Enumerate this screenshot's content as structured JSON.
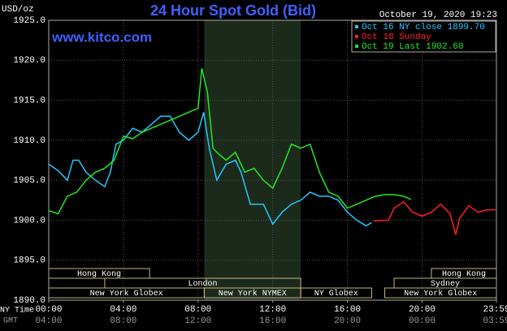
{
  "chart_data": {
    "type": "line",
    "title": "24 Hour Spot Gold (Bid)",
    "y_label": "USD/oz",
    "watermark": "www.kitco.com",
    "timestamp": "October 19, 2020 19:23",
    "x_label": "NY Time",
    "x2_label": "GMT",
    "xlim": [
      0,
      23.983
    ],
    "ylim": [
      1890,
      1925
    ],
    "yticks": [
      {
        "value": 1890,
        "label": "1890.0"
      },
      {
        "value": 1895,
        "label": "1895.0"
      },
      {
        "value": 1900,
        "label": "1900.0"
      },
      {
        "value": 1905,
        "label": "1905.0"
      },
      {
        "value": 1910,
        "label": "1910.0"
      },
      {
        "value": 1915,
        "label": "1915.0"
      },
      {
        "value": 1920,
        "label": "1920.0"
      },
      {
        "value": 1925,
        "label": "1925.0"
      }
    ],
    "xticks": [
      {
        "value": 0,
        "label": "00:00"
      },
      {
        "value": 4,
        "label": "04:00"
      },
      {
        "value": 8,
        "label": "08:00"
      },
      {
        "value": 12,
        "label": "12:00"
      },
      {
        "value": 16,
        "label": "16:00"
      },
      {
        "value": 20,
        "label": "20:00"
      },
      {
        "value": 23.983,
        "label": "23:59"
      }
    ],
    "x2ticks": [
      {
        "value": 0,
        "label": "04:00"
      },
      {
        "value": 4,
        "label": "08:00"
      },
      {
        "value": 8,
        "label": "12:00"
      },
      {
        "value": 12,
        "label": "16:00"
      },
      {
        "value": 16,
        "label": "20:00"
      },
      {
        "value": 20,
        "label": "00:00"
      },
      {
        "value": 23.983,
        "label": "03:59"
      }
    ],
    "grid": true,
    "shade": [
      8.33,
      13.5
    ],
    "sessions": [
      {
        "label": "Hong Kong",
        "start": 0,
        "end": 5.4,
        "row": 0
      },
      {
        "label": "Hong Kong",
        "start": 20.5,
        "end": 23.983,
        "row": 0
      },
      {
        "label": "London",
        "start": 3,
        "end": 13.5,
        "row": 1
      },
      {
        "label": "Sydney",
        "start": 18.5,
        "end": 23.983,
        "row": 1
      },
      {
        "label": "New York Globex",
        "start": 0,
        "end": 8.33,
        "row": 2
      },
      {
        "label": "New York NYMEX",
        "start": 8.33,
        "end": 13.5,
        "row": 2
      },
      {
        "label": "NY Globex",
        "start": 13.5,
        "end": 17.3,
        "row": 2
      },
      {
        "label": "New York Globex",
        "start": 18,
        "end": 23.983,
        "row": 2
      }
    ],
    "series": [
      {
        "name": "Oct 16 NY close 1899.70",
        "color": "#22c8ff",
        "x": [
          0,
          0.5,
          1,
          1.3,
          1.6,
          2,
          2.5,
          3,
          3.3,
          3.6,
          4,
          4.5,
          5,
          5.5,
          6,
          6.5,
          7,
          7.5,
          8,
          8.3,
          8.6,
          9,
          9.5,
          10,
          10.3,
          10.8,
          11.5,
          12,
          12.5,
          13,
          13.5,
          14,
          14.5,
          15,
          15.5,
          16,
          16.5,
          17,
          17.3
        ],
        "values": [
          1907,
          1906.2,
          1905,
          1907.5,
          1907.5,
          1906,
          1905,
          1904.2,
          1906,
          1909.5,
          1910,
          1911.5,
          1911,
          1912,
          1913,
          1913,
          1911,
          1910,
          1911,
          1913.5,
          1909,
          1905,
          1907,
          1907.5,
          1906,
          1902,
          1902,
          1899.5,
          1901,
          1902,
          1902.5,
          1903.5,
          1903,
          1903,
          1902.5,
          1901,
          1900,
          1899.3,
          1899.7
        ]
      },
      {
        "name": "Oct 18 Sunday",
        "color": "#ff2020",
        "x": [
          17.4,
          18.2,
          18.5,
          19,
          19.5,
          20,
          20.5,
          21,
          21.5,
          21.8,
          22,
          22.5,
          23,
          23.5,
          23.983
        ],
        "values": [
          1899.9,
          1900,
          1901.5,
          1902.3,
          1901,
          1900.5,
          1901,
          1902,
          1900.8,
          1898.2,
          1900.2,
          1901.8,
          1901,
          1901.3,
          1901.3
        ]
      },
      {
        "name": "Oct 19 Last 1902.60",
        "color": "#22e822",
        "x": [
          0,
          0.5,
          1,
          1.5,
          2,
          2.5,
          3,
          3.5,
          4,
          4.5,
          5,
          5.5,
          6,
          6.5,
          7,
          7.5,
          8,
          8.2,
          8.5,
          8.8,
          9,
          9.5,
          10,
          10.5,
          11,
          11.5,
          12,
          12.5,
          13,
          13.5,
          14,
          14.5,
          15,
          15.5,
          16,
          16.5,
          17,
          17.5,
          18,
          18.5,
          19,
          19.4
        ],
        "values": [
          1901.2,
          1900.8,
          1903,
          1903.5,
          1905,
          1906,
          1906.5,
          1907.5,
          1910.5,
          1910.2,
          1911,
          1911.5,
          1912,
          1912.5,
          1913,
          1913.5,
          1914,
          1919,
          1916,
          1909,
          1908.5,
          1907.5,
          1908.5,
          1906,
          1906.5,
          1905,
          1904,
          1906.5,
          1909.5,
          1909,
          1909.5,
          1906,
          1903.5,
          1903,
          1901.5,
          1902,
          1902.5,
          1903,
          1903.2,
          1903.2,
          1903,
          1902.6
        ]
      }
    ]
  }
}
